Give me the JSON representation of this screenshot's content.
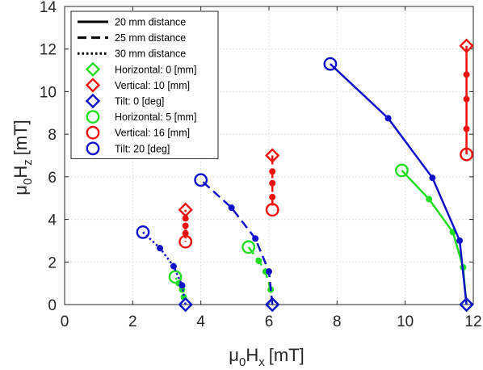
{
  "chart_data": {
    "type": "line",
    "xlabel": {
      "base": "μ",
      "base_sub": "0",
      "main": "H",
      "main_sub": "x",
      "unit": "[mT]"
    },
    "ylabel": {
      "base": "μ",
      "base_sub": "0",
      "main": "H",
      "main_sub": "z",
      "unit": "[mT]"
    },
    "xlim": [
      0,
      12
    ],
    "ylim": [
      0,
      14
    ],
    "xticks": [
      0,
      2,
      4,
      6,
      8,
      10,
      12
    ],
    "yticks": [
      0,
      2,
      4,
      6,
      8,
      10,
      12,
      14
    ],
    "grid": true,
    "legend_position": "top-left",
    "colors": {
      "green": "#22dd22",
      "red": "#ee1111",
      "blue": "#1111cc"
    },
    "legend": [
      {
        "label": "20 mm distance",
        "kind": "line",
        "dash": "solid"
      },
      {
        "label": "25 mm distance",
        "kind": "line",
        "dash": "dashed"
      },
      {
        "label": "30 mm distance",
        "kind": "line",
        "dash": "dotted"
      },
      {
        "label": "Horizontal: 0 [mm]",
        "kind": "marker",
        "marker": "diamond",
        "color": "green"
      },
      {
        "label": "Vertical: 10 [mm]",
        "kind": "marker",
        "marker": "diamond",
        "color": "red"
      },
      {
        "label": "Tilt: 0 [deg]",
        "kind": "marker",
        "marker": "diamond",
        "color": "blue"
      },
      {
        "label": "Horizontal: 5 [mm]",
        "kind": "marker",
        "marker": "circle",
        "color": "green"
      },
      {
        "label": "Vertical: 16 [mm]",
        "kind": "marker",
        "marker": "circle",
        "color": "red"
      },
      {
        "label": "Tilt: 20 [deg]",
        "kind": "marker",
        "marker": "circle",
        "color": "blue"
      }
    ],
    "series": [
      {
        "group": "20 mm",
        "sweep": "horizontal",
        "color": "green",
        "dash": "solid",
        "x": [
          11.8,
          11.7,
          11.4,
          10.7,
          9.9
        ],
        "y": [
          0.0,
          1.75,
          3.4,
          4.95,
          6.3
        ]
      },
      {
        "group": "20 mm",
        "sweep": "vertical",
        "color": "red",
        "dash": "solid",
        "x": [
          11.8,
          11.8,
          11.8,
          11.8,
          11.8
        ],
        "y": [
          12.15,
          10.8,
          9.65,
          8.25,
          7.05
        ]
      },
      {
        "group": "20 mm",
        "sweep": "tilt",
        "color": "blue",
        "dash": "solid",
        "x": [
          11.8,
          11.6,
          10.8,
          9.5,
          7.8
        ],
        "y": [
          0.0,
          3.0,
          5.95,
          8.75,
          11.3
        ]
      },
      {
        "group": "25 mm",
        "sweep": "horizontal",
        "color": "green",
        "dash": "dashed",
        "x": [
          6.1,
          6.05,
          5.9,
          5.7,
          5.4
        ],
        "y": [
          0.0,
          0.7,
          1.55,
          2.05,
          2.7
        ]
      },
      {
        "group": "25 mm",
        "sweep": "vertical",
        "color": "red",
        "dash": "dashed",
        "x": [
          6.1,
          6.1,
          6.1,
          6.1,
          6.1
        ],
        "y": [
          7.0,
          6.25,
          5.7,
          5.05,
          4.45
        ]
      },
      {
        "group": "25 mm",
        "sweep": "tilt",
        "color": "blue",
        "dash": "dashed",
        "x": [
          6.1,
          6.0,
          5.6,
          4.9,
          4.0
        ],
        "y": [
          0.0,
          1.55,
          3.1,
          4.55,
          5.85
        ]
      },
      {
        "group": "30 mm",
        "sweep": "horizontal",
        "color": "green",
        "dash": "dotted",
        "x": [
          3.55,
          3.5,
          3.45,
          3.35,
          3.25
        ],
        "y": [
          0.0,
          0.35,
          0.7,
          1.0,
          1.3
        ]
      },
      {
        "group": "30 mm",
        "sweep": "vertical",
        "color": "red",
        "dash": "dotted",
        "x": [
          3.55,
          3.55,
          3.55,
          3.55,
          3.55
        ],
        "y": [
          4.45,
          4.05,
          3.7,
          3.35,
          2.95
        ]
      },
      {
        "group": "30 mm",
        "sweep": "tilt",
        "color": "blue",
        "dash": "dotted",
        "x": [
          3.55,
          3.45,
          3.2,
          2.8,
          2.3
        ],
        "y": [
          0.0,
          0.9,
          1.8,
          2.65,
          3.4
        ]
      }
    ]
  }
}
